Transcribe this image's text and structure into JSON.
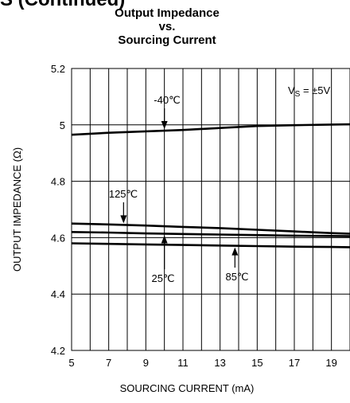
{
  "page_header": "S (Continued)",
  "chart_data": {
    "type": "line",
    "title": [
      "Output Impedance",
      "vs.",
      "Sourcing Current"
    ],
    "xlabel": "SOURCING CURRENT (mA)",
    "ylabel": "OUTPUT IMPEDANCE (Ω)",
    "xlim": [
      5,
      20
    ],
    "ylim": [
      4.2,
      5.2
    ],
    "x_ticks": [
      "5",
      "7",
      "9",
      "11",
      "13",
      "15",
      "17",
      "19"
    ],
    "y_ticks": [
      "4.2",
      "4.4",
      "4.6",
      "4.8",
      "5",
      "5.2"
    ],
    "grid": true,
    "condition_label": "V",
    "condition_sub": "S",
    "condition_value": " = ±5V",
    "series": [
      {
        "name": "-40℃",
        "x": [
          5,
          7,
          9,
          11,
          13,
          15,
          17,
          19,
          20
        ],
        "y": [
          4.965,
          4.972,
          4.977,
          4.982,
          4.989,
          4.996,
          4.999,
          5.001,
          5.002
        ]
      },
      {
        "name": "125℃",
        "x": [
          5,
          7,
          9,
          11,
          13,
          15,
          17,
          19,
          20
        ],
        "y": [
          4.65,
          4.647,
          4.643,
          4.638,
          4.634,
          4.628,
          4.622,
          4.616,
          4.614
        ]
      },
      {
        "name": "25℃",
        "x": [
          5,
          7,
          9,
          11,
          13,
          15,
          17,
          19,
          20
        ],
        "y": [
          4.62,
          4.618,
          4.615,
          4.613,
          4.611,
          4.609,
          4.607,
          4.606,
          4.605
        ]
      },
      {
        "name": "85℃",
        "x": [
          5,
          7,
          9,
          11,
          13,
          15,
          17,
          19,
          20
        ],
        "y": [
          4.58,
          4.578,
          4.576,
          4.574,
          4.572,
          4.57,
          4.568,
          4.567,
          4.566
        ]
      }
    ],
    "annotations": [
      {
        "series": "-40℃",
        "label": "-40℃"
      },
      {
        "series": "125℃",
        "label": "125℃"
      },
      {
        "series": "25℃",
        "label": "25℃"
      },
      {
        "series": "85℃",
        "label": "85℃"
      }
    ]
  }
}
